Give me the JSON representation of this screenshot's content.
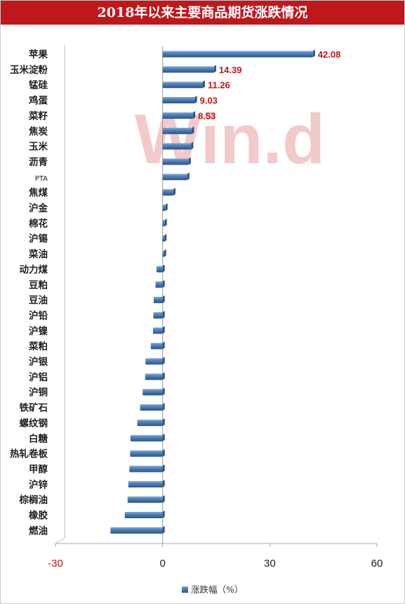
{
  "chart_data": {
    "type": "bar",
    "orientation": "horizontal",
    "title": "2018年以来主要商品期货涨跌情况",
    "categories": [
      "苹果",
      "玉米淀粉",
      "锰硅",
      "鸡蛋",
      "菜籽",
      "焦炭",
      "玉米",
      "沥青",
      "PTA",
      "焦煤",
      "沪金",
      "棉花",
      "沪锡",
      "菜油",
      "动力煤",
      "豆粕",
      "豆油",
      "沪铅",
      "沪镍",
      "菜粕",
      "沪银",
      "沪铝",
      "沪铜",
      "铁矿石",
      "螺纹钢",
      "白糖",
      "热轧卷板",
      "甲醇",
      "沪锌",
      "棕榈油",
      "橡胶",
      "燃油"
    ],
    "series": [
      {
        "name": "涨跌幅（%）",
        "values": [
          42.08,
          14.39,
          11.26,
          9.03,
          8.53,
          8.2,
          8.0,
          7.3,
          6.9,
          3.0,
          0.8,
          0.6,
          0.5,
          0.3,
          -1.7,
          -2.0,
          -2.5,
          -2.6,
          -2.7,
          -3.3,
          -4.8,
          -4.9,
          -5.6,
          -6.3,
          -7.1,
          -9.0,
          -9.1,
          -9.3,
          -9.6,
          -9.8,
          -10.6,
          -14.6
        ]
      }
    ],
    "data_labels": [
      "42.08",
      "14.39",
      "11.26",
      "9.03",
      "8.53"
    ],
    "xlim": [
      -30,
      60
    ],
    "x_ticks": [
      "-30",
      "0",
      "30",
      "60"
    ],
    "grid": false,
    "legend_position": "bottom",
    "watermark": "Win.d",
    "colors": {
      "bar": "#4a7bb7",
      "bar_dark": "#2c5486",
      "title_bg": "#c0171c",
      "data_label": "#c0171c",
      "negative_tick": "#c0171c"
    }
  }
}
